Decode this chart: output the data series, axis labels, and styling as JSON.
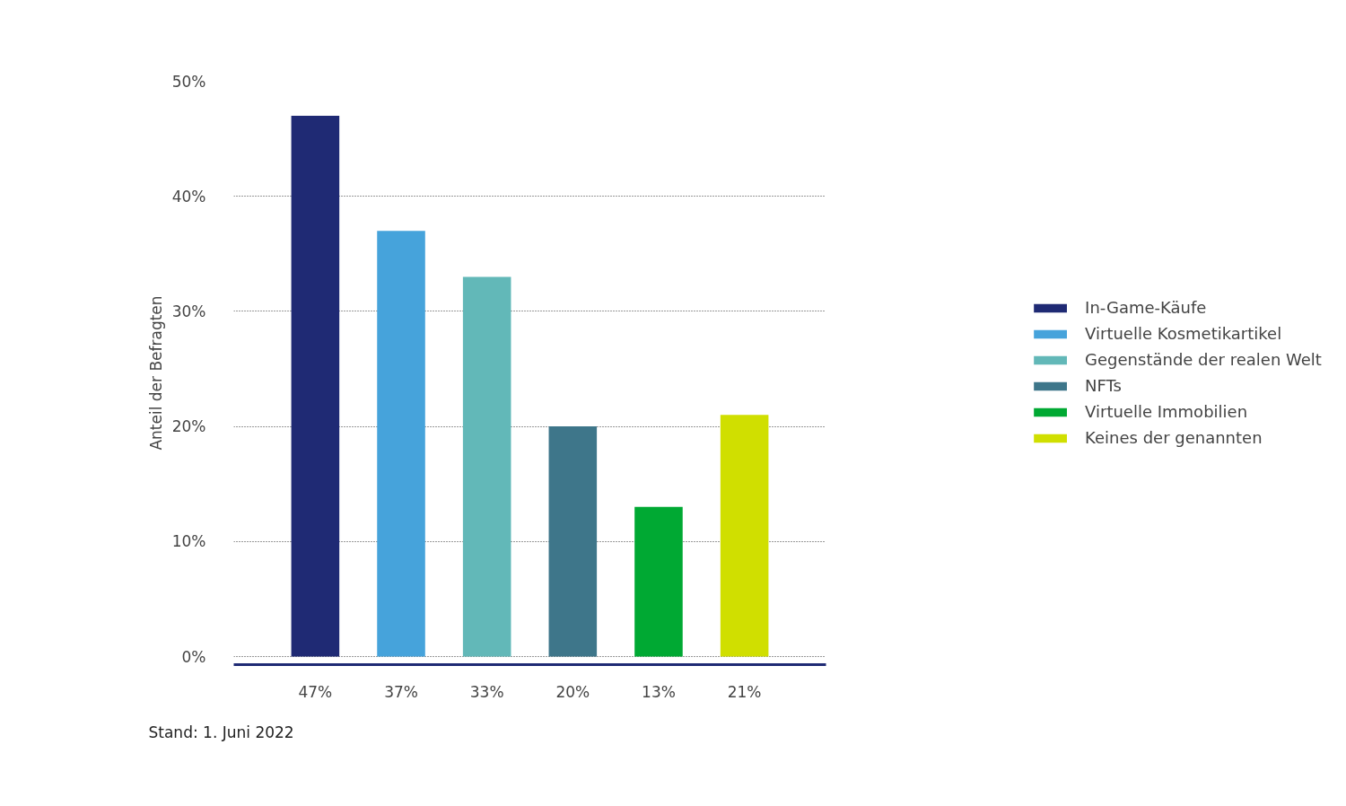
{
  "chart_data": {
    "type": "bar",
    "categories": [
      null,
      null,
      null,
      null,
      null,
      null
    ],
    "ylabel": "Anteil der Befragten",
    "series": [
      {
        "name": "In-Game-Käufe",
        "color": "#1f2a74",
        "values": [
          47,
          null,
          null,
          null,
          null,
          null
        ],
        "value_labels": [
          "47%",
          null,
          null,
          null,
          null,
          null
        ]
      },
      {
        "name": "Virtuelle Kosmetikartikel",
        "color": "#46a3db",
        "values": [
          null,
          37,
          null,
          null,
          null,
          null
        ],
        "value_labels": [
          null,
          "37%",
          null,
          null,
          null,
          null
        ]
      },
      {
        "name": "Gegenstände der realen Welt",
        "color": "#62b8b8",
        "values": [
          null,
          null,
          33,
          null,
          null,
          null
        ],
        "value_labels": [
          null,
          null,
          "33%",
          null,
          null,
          null
        ]
      },
      {
        "name": "NFTs",
        "color": "#3e768a",
        "values": [
          null,
          null,
          null,
          20,
          null,
          null
        ],
        "value_labels": [
          null,
          null,
          null,
          "20%",
          null,
          null
        ]
      },
      {
        "name": "Virtuelle Immobilien",
        "color": "#00a933",
        "values": [
          null,
          null,
          null,
          null,
          13,
          null
        ],
        "value_labels": [
          null,
          null,
          null,
          null,
          "13%",
          null
        ]
      },
      {
        "name": "Keines der genannten",
        "color": "#d0df00",
        "values": [
          null,
          null,
          null,
          null,
          null,
          21
        ],
        "value_labels": [
          null,
          null,
          null,
          null,
          null,
          "21%"
        ]
      }
    ],
    "ylim": [
      -0.7,
      50
    ],
    "yticks": [
      {
        "value": 0,
        "label": "0%"
      },
      {
        "value": 10,
        "label": "10%"
      },
      {
        "value": 20,
        "label": "20%"
      },
      {
        "value": 30,
        "label": "30%"
      },
      {
        "value": 40,
        "label": "40%"
      },
      {
        "value": 50,
        "label": "50%"
      }
    ],
    "grid": "y",
    "legend": "right",
    "annotations": [
      "Stand: 1. Juni 2022"
    ]
  }
}
